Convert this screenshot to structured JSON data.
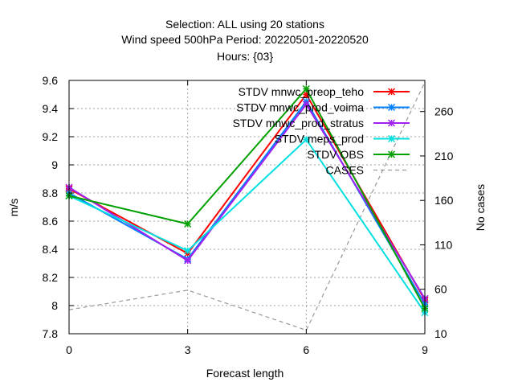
{
  "chart_data": {
    "type": "line",
    "title_lines": [
      "Selection: ALL using     20 stations",
      "Wind speed 500hPa   Period: 20220501-20220520",
      "Hours: {03}"
    ],
    "xlabel": "Forecast length",
    "ylabel": "m/s",
    "y2label": "No cases",
    "x": [
      0,
      3,
      6,
      9
    ],
    "xlim": [
      0,
      9
    ],
    "ylim": [
      7.8,
      9.6
    ],
    "y2lim": [
      10,
      295
    ],
    "x_ticks": [
      0,
      3,
      6,
      9
    ],
    "y_ticks": [
      7.8,
      8.0,
      8.2,
      8.4,
      8.6,
      8.8,
      9.0,
      9.2,
      9.4,
      9.6
    ],
    "y_tick_labels": [
      "7.8",
      "8",
      "8.2",
      "8.4",
      "8.6",
      "8.8",
      "9",
      "9.2",
      "9.4",
      "9.6"
    ],
    "y2_ticks": [
      10,
      60,
      110,
      160,
      210,
      260
    ],
    "grid": true,
    "legend_position": "top-right",
    "series": [
      {
        "name": "STDV mnwc_preop_teho",
        "color": "#ff0000",
        "values": [
          8.83,
          8.37,
          9.5,
          8.04
        ]
      },
      {
        "name": "STDV mnwc_prod_voima",
        "color": "#0080ff",
        "values": [
          8.8,
          8.33,
          9.45,
          8.01
        ]
      },
      {
        "name": "STDV mnwc_prod_stratus",
        "color": "#a020f0",
        "values": [
          8.84,
          8.32,
          9.43,
          8.05
        ]
      },
      {
        "name": "STDV meps_prod",
        "color": "#00e0e0",
        "values": [
          8.78,
          8.39,
          9.18,
          7.95
        ]
      },
      {
        "name": "STDV OBS",
        "color": "#00a000",
        "values": [
          8.78,
          8.58,
          9.54,
          7.98
        ]
      }
    ],
    "cases": {
      "name": "CASES",
      "color": "#999999",
      "axis": "y2",
      "values": [
        37,
        59,
        14,
        293
      ]
    }
  }
}
